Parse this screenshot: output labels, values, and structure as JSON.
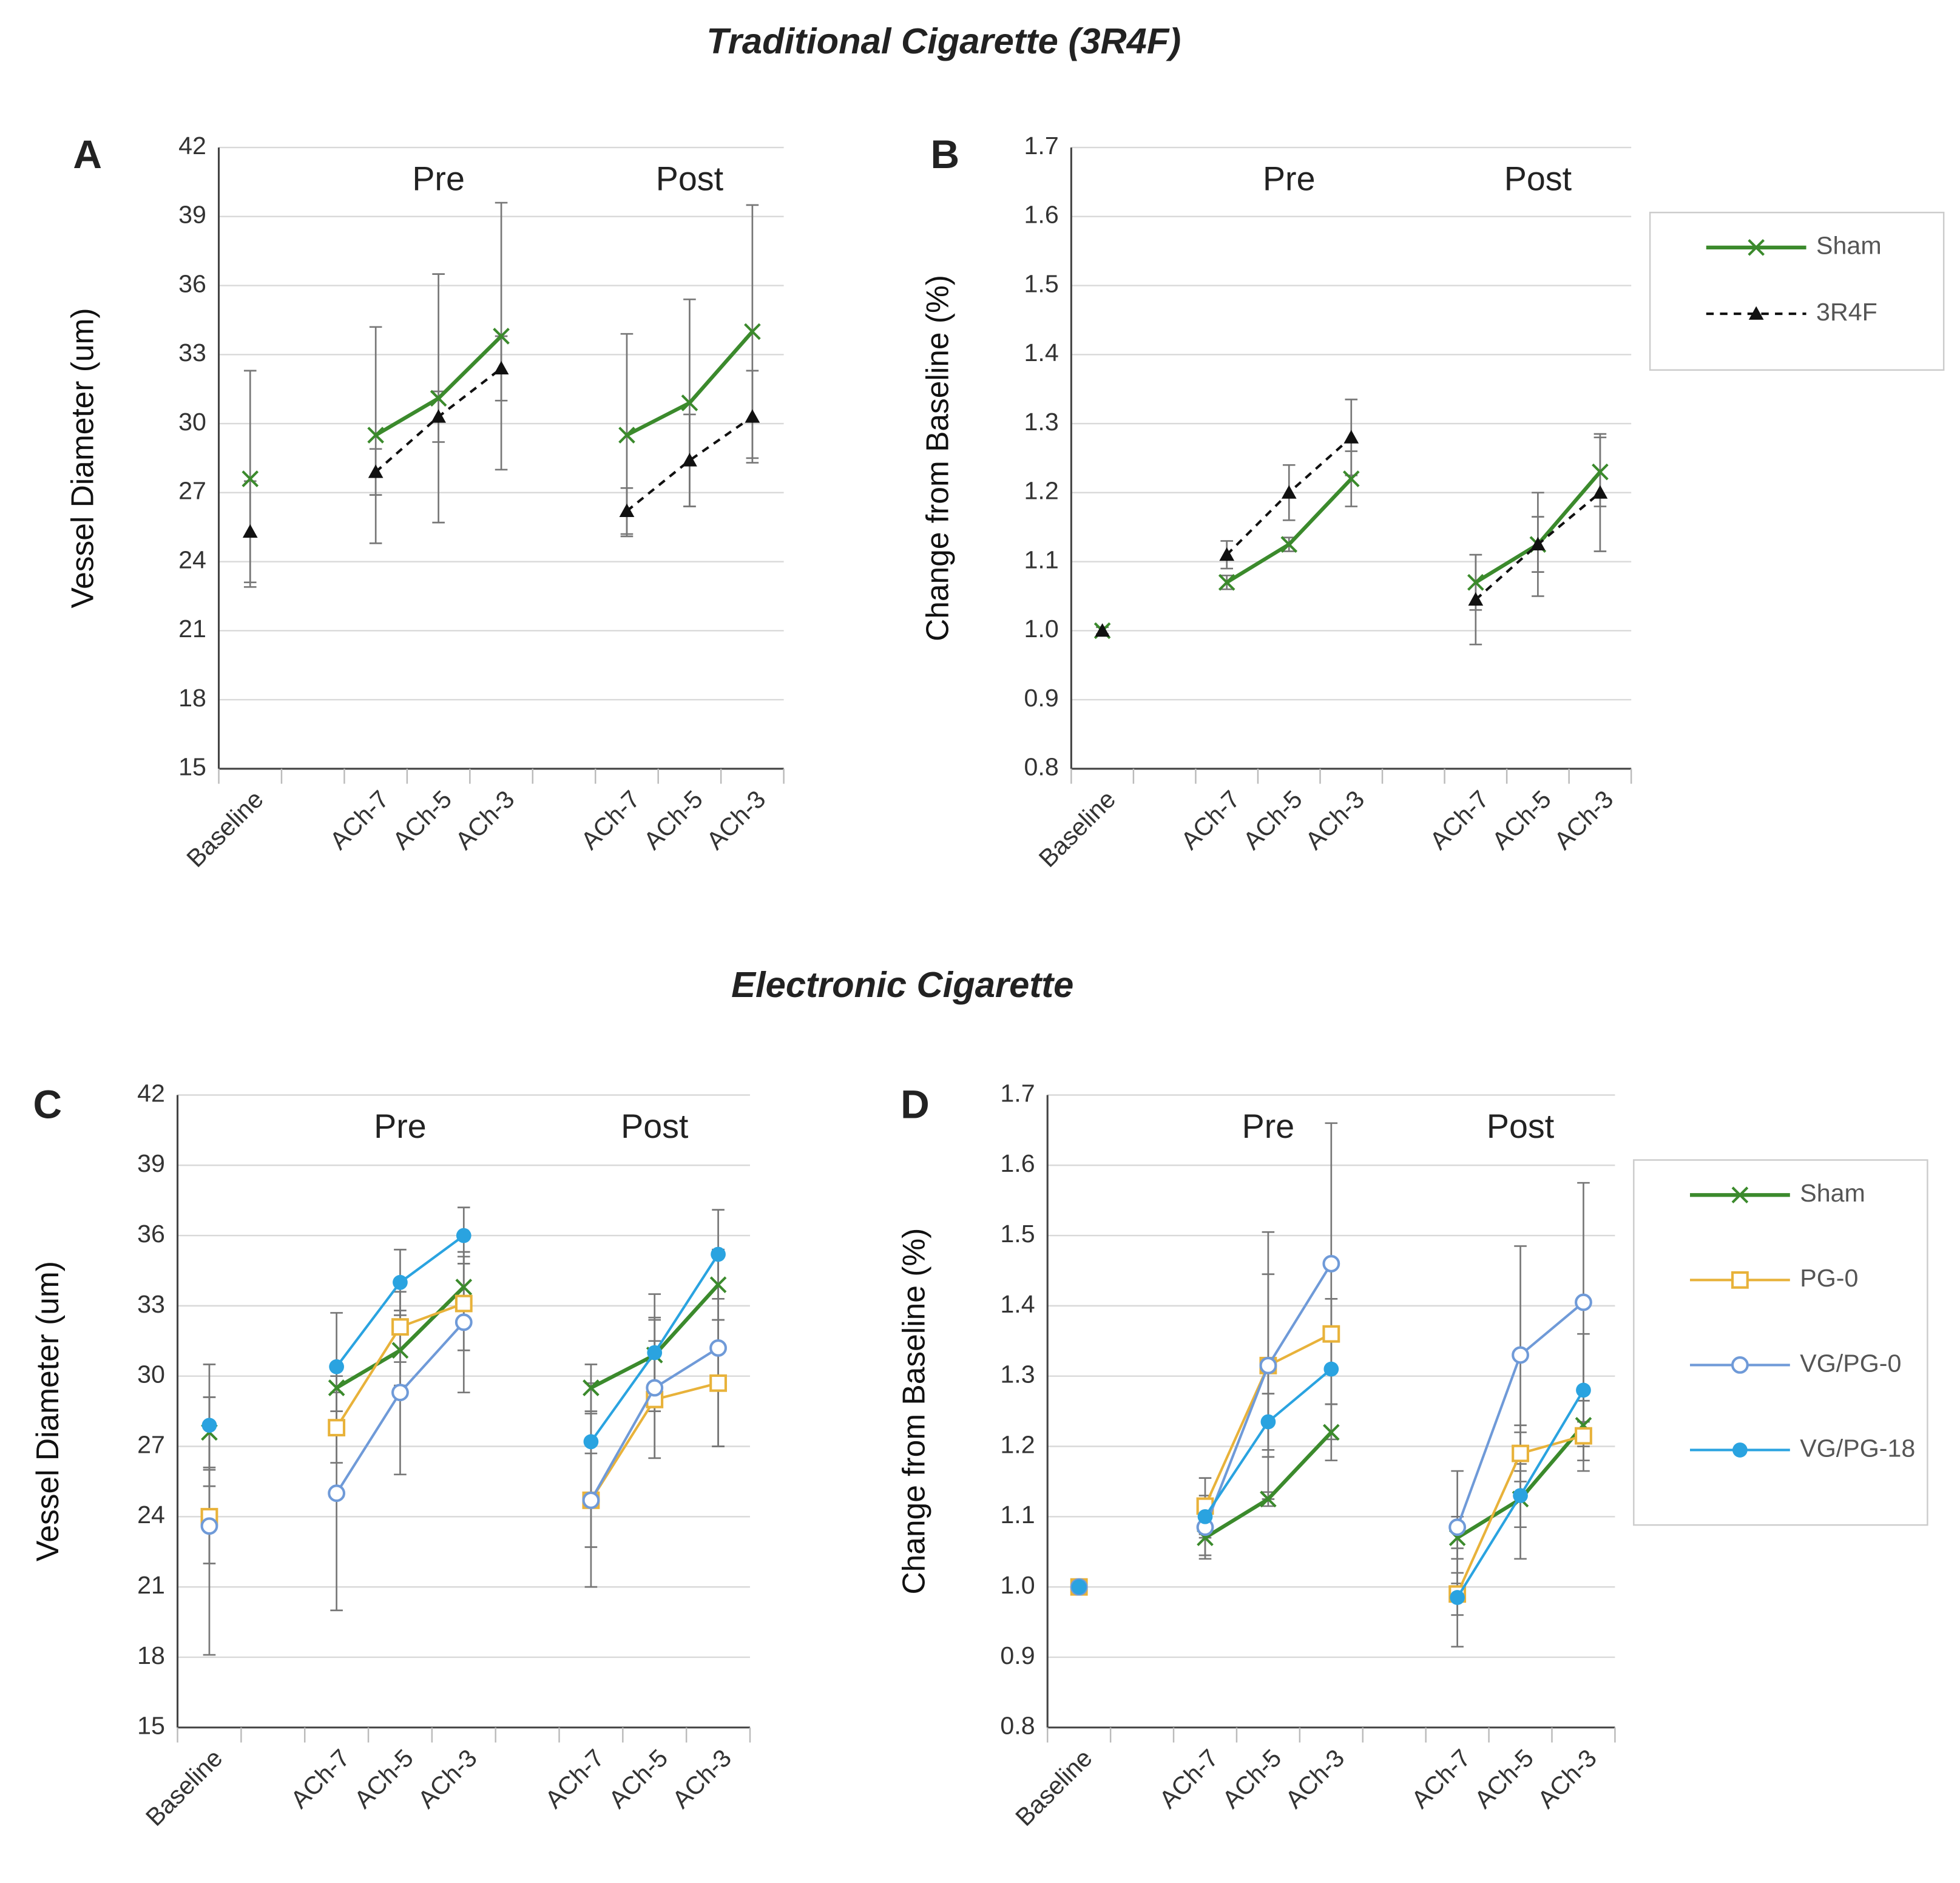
{
  "titles": [
    "Traditional Cigarette (3R4F)",
    "Electronic Cigarette"
  ],
  "chart_data": [
    {
      "type": "line",
      "panel": "A",
      "y_label": "Vessel Diameter (um)",
      "group_labels": [
        "Pre",
        "Post"
      ],
      "categories": [
        "Baseline",
        null,
        "ACh-7",
        "ACh-5",
        "ACh-3",
        null,
        "ACh-7",
        "ACh-5",
        "ACh-3"
      ],
      "ylim": [
        15,
        42
      ],
      "yticks": [
        15,
        18,
        21,
        24,
        27,
        30,
        33,
        36,
        39,
        42
      ],
      "grid": true,
      "series": [
        {
          "color": "#3b8a2c",
          "marker": "x",
          "dash": false,
          "values": [
            27.6,
            null,
            29.5,
            31.1,
            33.8,
            null,
            29.5,
            30.9,
            34.0
          ],
          "errors": [
            4.7,
            null,
            4.7,
            5.4,
            5.8,
            null,
            4.4,
            4.5,
            5.5
          ]
        },
        {
          "color": "#111111",
          "marker": "triangle",
          "dash": true,
          "values": [
            25.3,
            null,
            27.9,
            30.3,
            32.4,
            null,
            26.2,
            28.4,
            30.3
          ],
          "errors": [
            2.2,
            null,
            1.0,
            1.1,
            1.4,
            null,
            1.0,
            2.0,
            2.0
          ]
        }
      ]
    },
    {
      "type": "line",
      "panel": "B",
      "y_label": "Change from Baseline (%)",
      "group_labels": [
        "Pre",
        "Post"
      ],
      "legend": "right",
      "categories": [
        "Baseline",
        null,
        "ACh-7",
        "ACh-5",
        "ACh-3",
        null,
        "ACh-7",
        "ACh-5",
        "ACh-3"
      ],
      "ylim": [
        0.8,
        1.7
      ],
      "yticks": [
        0.8,
        0.9,
        {
          "value": 1,
          "label": "1.0"
        },
        1.1,
        1.2,
        1.3,
        1.4,
        1.5,
        1.6,
        1.7
      ],
      "grid": true,
      "series": [
        {
          "name": "Sham",
          "color": "#3b8a2c",
          "marker": "x",
          "dash": false,
          "values": [
            1.0,
            null,
            1.07,
            1.125,
            1.22,
            null,
            1.07,
            1.125,
            1.23
          ],
          "errors": [
            0.005,
            null,
            0.01,
            0.01,
            0.04,
            null,
            0.04,
            0.04,
            0.05
          ]
        },
        {
          "name": "3R4F",
          "color": "#111111",
          "marker": "triangle",
          "dash": true,
          "values": [
            1.0,
            null,
            1.11,
            1.2,
            1.28,
            null,
            1.045,
            1.125,
            1.2
          ],
          "errors": [
            0.005,
            null,
            0.02,
            0.04,
            0.055,
            null,
            0.065,
            0.075,
            0.085
          ]
        }
      ]
    },
    {
      "type": "line",
      "panel": "C",
      "y_label": "Vessel Diameter (um)",
      "group_labels": [
        "Pre",
        "Post"
      ],
      "categories": [
        "Baseline",
        null,
        "ACh-7",
        "ACh-5",
        "ACh-3",
        null,
        "ACh-7",
        "ACh-5",
        "ACh-3"
      ],
      "ylim": [
        15,
        42
      ],
      "yticks": [
        15,
        18,
        21,
        24,
        27,
        30,
        33,
        36,
        39,
        42
      ],
      "grid": true,
      "series": [
        {
          "color": "#3b8a2c",
          "marker": "x",
          "dash": false,
          "values": [
            27.6,
            null,
            29.5,
            31.1,
            33.8,
            null,
            29.5,
            30.9,
            33.9
          ],
          "errors": [
            1.5,
            null,
            1.0,
            1.5,
            1.5,
            null,
            1.0,
            1.5,
            1.5
          ]
        },
        {
          "color": "#e8b23a",
          "marker": "square",
          "dash": false,
          "values": [
            24.0,
            null,
            27.8,
            32.1,
            33.1,
            null,
            24.7,
            29.0,
            29.7
          ],
          "errors": [
            2.0,
            null,
            1.5,
            1.5,
            2.0,
            null,
            2.0,
            2.5,
            2.7
          ]
        },
        {
          "color": "#6f9ad8",
          "marker": "circle-open",
          "dash": false,
          "values": [
            23.6,
            null,
            25.0,
            29.3,
            32.3,
            null,
            24.7,
            29.5,
            31.2
          ],
          "errors": [
            5.5,
            null,
            5.0,
            3.5,
            3.0,
            null,
            3.7,
            3.0,
            4.2
          ]
        },
        {
          "color": "#2aa3e0",
          "marker": "circle",
          "dash": false,
          "values": [
            27.9,
            null,
            30.4,
            34.0,
            36.0,
            null,
            27.2,
            31.0,
            35.2
          ],
          "errors": [
            2.6,
            null,
            2.3,
            1.4,
            1.2,
            null,
            2.5,
            2.5,
            1.9
          ]
        }
      ]
    },
    {
      "type": "line",
      "panel": "D",
      "y_label": "Change from Baseline (%)",
      "group_labels": [
        "Pre",
        "Post"
      ],
      "legend": "right",
      "categories": [
        "Baseline",
        null,
        "ACh-7",
        "ACh-5",
        "ACh-3",
        null,
        "ACh-7",
        "ACh-5",
        "ACh-3"
      ],
      "ylim": [
        0.8,
        1.7
      ],
      "yticks": [
        0.8,
        0.9,
        {
          "value": 1,
          "label": "1.0"
        },
        1.1,
        1.2,
        1.3,
        1.4,
        1.5,
        1.6,
        1.7
      ],
      "grid": true,
      "series": [
        {
          "name": "Sham",
          "color": "#3b8a2c",
          "marker": "x",
          "dash": false,
          "values": [
            1.0,
            null,
            1.07,
            1.125,
            1.22,
            null,
            1.07,
            1.125,
            1.23
          ],
          "errors": [
            0.005,
            null,
            0.03,
            0.01,
            0.04,
            null,
            0.03,
            0.04,
            0.05
          ]
        },
        {
          "name": "PG-0",
          "color": "#e8b23a",
          "marker": "square",
          "dash": false,
          "values": [
            1.0,
            null,
            1.115,
            1.315,
            1.36,
            null,
            0.99,
            1.19,
            1.215
          ],
          "errors": [
            0.005,
            null,
            0.04,
            0.13,
            0.05,
            null,
            0.03,
            0.04,
            0.05
          ]
        },
        {
          "name": "VG/PG-0",
          "color": "#6f9ad8",
          "marker": "circle-open",
          "dash": false,
          "values": [
            1.0,
            null,
            1.085,
            1.315,
            1.46,
            null,
            1.085,
            1.33,
            1.405
          ],
          "errors": [
            0.005,
            null,
            0.04,
            0.19,
            0.2,
            null,
            0.08,
            0.155,
            0.17
          ]
        },
        {
          "name": "VG/PG-18",
          "color": "#2aa3e0",
          "marker": "circle",
          "dash": false,
          "values": [
            1.0,
            null,
            1.1,
            1.235,
            1.31,
            null,
            0.985,
            1.13,
            1.28
          ],
          "errors": [
            0.005,
            null,
            0.03,
            0.04,
            0.1,
            null,
            0.07,
            0.09,
            0.08
          ]
        }
      ]
    }
  ]
}
